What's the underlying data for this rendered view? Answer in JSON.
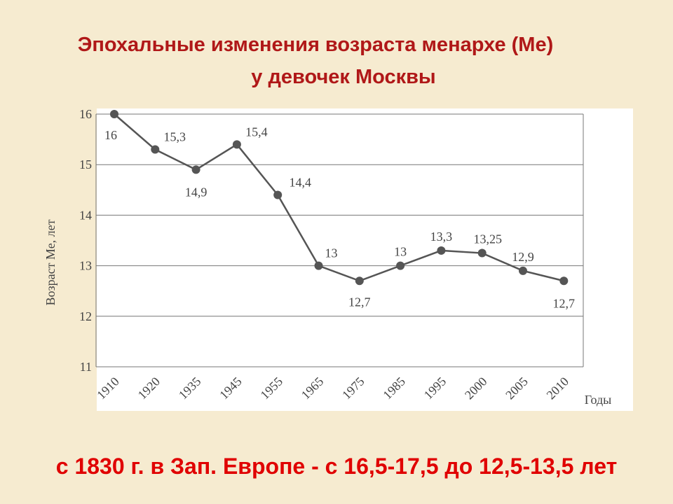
{
  "title": [
    "Эпохальные изменения возраста менархе (Ме)",
    "у девочек Москвы"
  ],
  "chart_data": {
    "type": "line",
    "categories": [
      "1910",
      "1920",
      "1935",
      "1945",
      "1955",
      "1965",
      "1975",
      "1985",
      "1995",
      "2000",
      "2005",
      "2010"
    ],
    "values": [
      16,
      15.3,
      14.9,
      15.4,
      14.4,
      13,
      12.7,
      13,
      13.3,
      13.25,
      12.9,
      12.7
    ],
    "value_labels": [
      "16",
      "15,3",
      "14,9",
      "15,4",
      "14,4",
      "13",
      "12,7",
      "13",
      "13,3",
      "13,25",
      "12,9",
      "12,7"
    ],
    "color": "#555555",
    "ylim": [
      11,
      16
    ],
    "yticks": [
      11,
      12,
      13,
      14,
      15,
      16
    ],
    "grid": true,
    "ylabel": "Возраст Ме, лет",
    "xlabel": "Годы"
  },
  "footer": "с 1830 г. в Зап. Европе - с 16,5-17,5 до 12,5-13,5 лет"
}
